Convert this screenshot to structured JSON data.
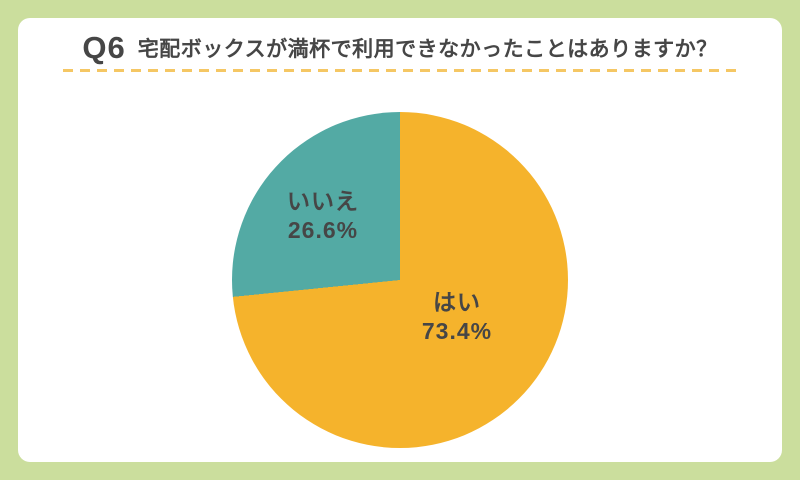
{
  "header": {
    "question_number": "Q6",
    "question_text": "宅配ボックスが満杯で利用できなかったことはありますか？"
  },
  "colors": {
    "frame_background": "#CBDE9D",
    "card_background": "#FFFFFF",
    "divider_dash": "#F5C764",
    "text": "#464646",
    "slice_yes": "#F5B32C",
    "slice_no": "#53AAA4"
  },
  "chart_data": {
    "type": "pie",
    "title": "Q6 宅配ボックスが満杯で利用できなかったことはありますか？",
    "categories": [
      "はい",
      "いいえ"
    ],
    "values": [
      73.4,
      26.6
    ],
    "unit": "%",
    "start_angle": "12-o'clock",
    "direction": "clockwise",
    "legend": "none",
    "slices": [
      {
        "label": "はい",
        "value": 73.4,
        "pct_label": "73.4%",
        "color": "#F5B32C"
      },
      {
        "label": "いいえ",
        "value": 26.6,
        "pct_label": "26.6%",
        "color": "#53AAA4"
      }
    ]
  }
}
